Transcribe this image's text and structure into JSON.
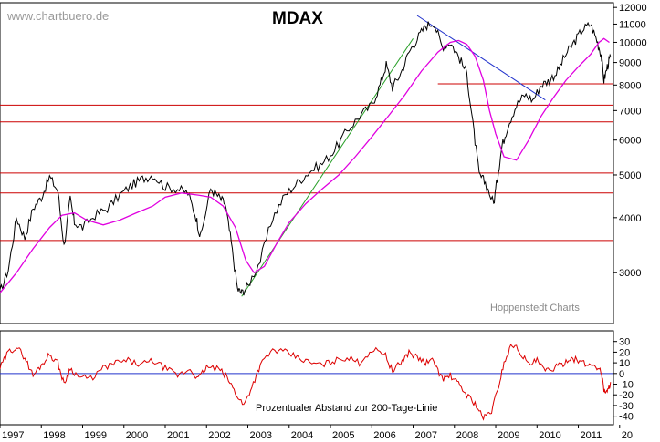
{
  "site_label": "www.chartbuero.de",
  "credit_label": "Hoppenstedt Charts",
  "chart_data": [
    {
      "type": "line",
      "title": "MDAX",
      "scale": "log",
      "x_ticks": [
        "1997",
        "1998",
        "1999",
        "2000",
        "2001",
        "2002",
        "2003",
        "2004",
        "2005",
        "2006",
        "2007",
        "2008",
        "2009",
        "2010",
        "2011",
        "20"
      ],
      "y_ticks": [
        3000,
        4000,
        5000,
        6000,
        7000,
        8000,
        9000,
        10000,
        11000,
        12000
      ],
      "ylim": [
        2300,
        12300
      ],
      "xlim": [
        1997.0,
        2011.85
      ],
      "horizontal_lines": [
        {
          "y": 3550,
          "color": "#cc0000"
        },
        {
          "y": 4550,
          "color": "#cc0000"
        },
        {
          "y": 5050,
          "color": "#cc0000"
        },
        {
          "y": 6600,
          "color": "#cc0000"
        },
        {
          "y": 7200,
          "color": "#cc0000"
        },
        {
          "y": 8050,
          "x_from": 2007.6,
          "color": "#cc0000"
        }
      ],
      "trendlines": [
        {
          "color": "#2aa02a",
          "points": [
            [
              2002.85,
              2650
            ],
            [
              2007.0,
              10200
            ]
          ]
        },
        {
          "color": "#2233cc",
          "points": [
            [
              2007.1,
              11500
            ],
            [
              2010.2,
              7400
            ]
          ]
        }
      ],
      "series": [
        {
          "color": "#000000",
          "x": [
            1997.0,
            1997.2,
            1997.4,
            1997.6,
            1997.8,
            1998.0,
            1998.2,
            1998.4,
            1998.55,
            1998.7,
            1998.8,
            1999.0,
            1999.3,
            1999.6,
            1999.9,
            2000.2,
            2000.45,
            2000.7,
            2001.0,
            2001.3,
            2001.55,
            2001.75,
            2001.85,
            2002.1,
            2002.3,
            2002.45,
            2002.6,
            2002.75,
            2002.85,
            2003.0,
            2003.3,
            2003.6,
            2003.9,
            2004.2,
            2004.5,
            2004.8,
            2005.1,
            2005.4,
            2005.7,
            2006.0,
            2006.2,
            2006.35,
            2006.5,
            2006.7,
            2006.9,
            2007.1,
            2007.3,
            2007.5,
            2007.7,
            2007.9,
            2008.1,
            2008.3,
            2008.45,
            2008.6,
            2008.75,
            2008.95,
            2009.05,
            2009.15,
            2009.3,
            2009.5,
            2009.7,
            2009.9,
            2010.1,
            2010.3,
            2010.5,
            2010.7,
            2010.9,
            2011.1,
            2011.3,
            2011.45,
            2011.55,
            2011.62,
            2011.7,
            2011.78
          ],
          "values": [
            2700,
            3050,
            4000,
            3600,
            4200,
            4450,
            4950,
            4600,
            3450,
            4400,
            3900,
            3800,
            4050,
            4200,
            4500,
            4750,
            4900,
            5000,
            4700,
            4650,
            4550,
            4000,
            3600,
            4650,
            4450,
            4300,
            3500,
            2750,
            2700,
            2800,
            3200,
            4000,
            4500,
            4800,
            5100,
            5300,
            5700,
            6300,
            6800,
            7200,
            8000,
            8900,
            7900,
            8500,
            9500,
            10200,
            10900,
            11100,
            9800,
            10000,
            9300,
            8500,
            6500,
            5000,
            4800,
            4300,
            5000,
            5800,
            6500,
            7200,
            7600,
            7400,
            8000,
            8200,
            8600,
            9400,
            10000,
            10700,
            11000,
            10100,
            9400,
            8200,
            8800,
            9300
          ]
        },
        {
          "color": "#e000e0",
          "x": [
            1997.0,
            1997.4,
            1997.8,
            1998.2,
            1998.5,
            1998.8,
            1999.1,
            1999.5,
            1999.9,
            2000.3,
            2000.7,
            2001.0,
            2001.4,
            2001.8,
            2002.1,
            2002.4,
            2002.7,
            2002.95,
            2003.15,
            2003.4,
            2003.7,
            2004.0,
            2004.4,
            2004.8,
            2005.2,
            2005.6,
            2006.0,
            2006.4,
            2006.8,
            2007.2,
            2007.6,
            2007.9,
            2008.1,
            2008.3,
            2008.5,
            2008.7,
            2008.85,
            2009.0,
            2009.2,
            2009.5,
            2009.8,
            2010.1,
            2010.4,
            2010.7,
            2011.0,
            2011.3,
            2011.5,
            2011.62,
            2011.75
          ],
          "values": [
            2700,
            3000,
            3400,
            3800,
            4050,
            4100,
            3950,
            3850,
            3950,
            4100,
            4250,
            4450,
            4550,
            4500,
            4450,
            4250,
            3800,
            3200,
            3000,
            3100,
            3500,
            3900,
            4300,
            4650,
            5000,
            5500,
            6100,
            6800,
            7600,
            8600,
            9500,
            10000,
            10100,
            9900,
            9300,
            8200,
            7000,
            6200,
            5500,
            5400,
            6000,
            6800,
            7500,
            8200,
            8800,
            9400,
            10000,
            10200,
            10000
          ]
        }
      ]
    },
    {
      "type": "line",
      "label": "Prozentualer Abstand zur 200-Tage-Linie",
      "y_ticks": [
        30,
        20,
        10,
        0,
        -10,
        -20,
        -30,
        -40
      ],
      "ylim": [
        -48,
        40
      ],
      "zero_line_color": "#2233cc",
      "series": [
        {
          "color": "#dd0000",
          "x": [
            1997.0,
            1997.2,
            1997.4,
            1997.6,
            1997.8,
            1998.0,
            1998.2,
            1998.4,
            1998.55,
            1998.7,
            1998.9,
            1999.2,
            1999.5,
            1999.8,
            2000.1,
            2000.4,
            2000.7,
            2001.0,
            2001.3,
            2001.6,
            2001.8,
            2002.0,
            2002.3,
            2002.5,
            2002.7,
            2002.9,
            2003.1,
            2003.3,
            2003.6,
            2003.9,
            2004.2,
            2004.5,
            2004.8,
            2005.1,
            2005.4,
            2005.7,
            2006.0,
            2006.3,
            2006.5,
            2006.7,
            2006.9,
            2007.1,
            2007.3,
            2007.5,
            2007.7,
            2007.9,
            2008.1,
            2008.3,
            2008.5,
            2008.7,
            2008.9,
            2009.05,
            2009.2,
            2009.4,
            2009.6,
            2009.8,
            2010.0,
            2010.2,
            2010.4,
            2010.6,
            2010.8,
            2011.0,
            2011.2,
            2011.4,
            2011.55,
            2011.62,
            2011.7,
            2011.78
          ],
          "values": [
            5,
            20,
            25,
            15,
            -2,
            8,
            18,
            10,
            -10,
            5,
            -3,
            -5,
            5,
            10,
            12,
            8,
            12,
            5,
            -2,
            4,
            -5,
            6,
            4,
            -4,
            -18,
            -30,
            -12,
            8,
            22,
            20,
            15,
            10,
            8,
            12,
            15,
            10,
            22,
            20,
            2,
            10,
            20,
            15,
            10,
            12,
            -5,
            -2,
            -10,
            -20,
            -28,
            -42,
            -35,
            -15,
            10,
            28,
            20,
            8,
            12,
            2,
            5,
            8,
            15,
            12,
            8,
            8,
            2,
            -15,
            -18,
            -8
          ]
        }
      ]
    }
  ]
}
